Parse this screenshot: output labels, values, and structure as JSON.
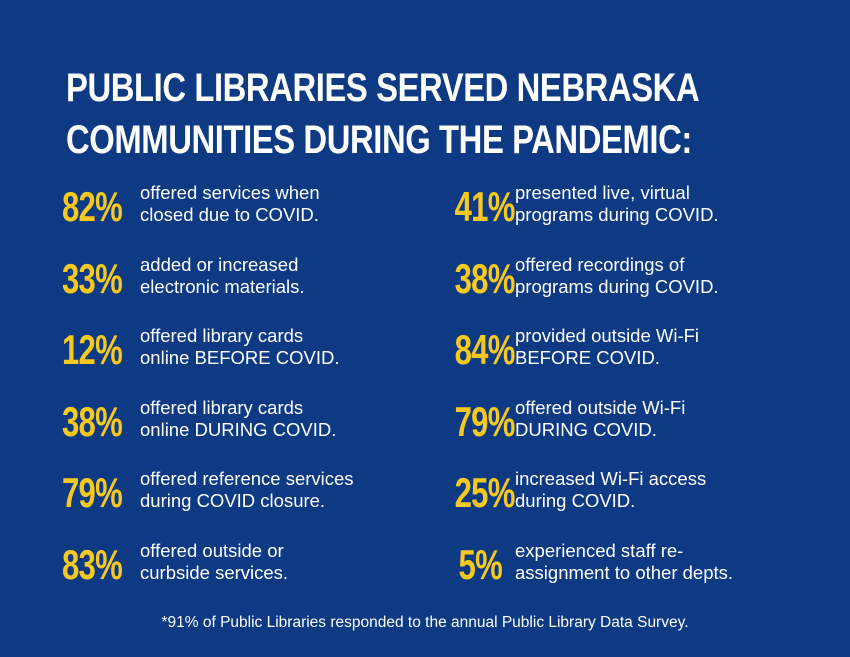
{
  "title": {
    "line1": "PUBLIC LIBRARIES SERVED NEBRASKA",
    "line2": "COMMUNITIES DURING THE PANDEMIC:"
  },
  "left_stats": [
    {
      "percent": "82%",
      "line1": "offered services when",
      "line2": "closed due to COVID."
    },
    {
      "percent": "33%",
      "line1": "added or increased",
      "line2": "electronic materials."
    },
    {
      "percent": "12%",
      "line1": "offered library cards",
      "line2": "online BEFORE COVID."
    },
    {
      "percent": "38%",
      "line1": "offered library cards",
      "line2": "online DURING COVID."
    },
    {
      "percent": "79%",
      "line1": "offered reference services",
      "line2": "during COVID closure."
    },
    {
      "percent": "83%",
      "line1": "offered outside or",
      "line2": "curbside services."
    }
  ],
  "right_stats": [
    {
      "percent": "41%",
      "line1": "presented live, virtual",
      "line2": "programs during COVID."
    },
    {
      "percent": "38%",
      "line1": "offered recordings of",
      "line2": "programs during COVID."
    },
    {
      "percent": "84%",
      "line1": "provided outside Wi-Fi",
      "line2": "BEFORE COVID."
    },
    {
      "percent": "79%",
      "line1": "offered outside Wi-Fi",
      "line2": "DURING COVID."
    },
    {
      "percent": "25%",
      "line1": "increased Wi-Fi access",
      "line2": "during COVID."
    },
    {
      "percent": "5%",
      "line1": "experienced staff re-",
      "line2": "assignment to other depts."
    }
  ],
  "footnote": "*91% of Public Libraries responded to the annual Public Library Data Survey.",
  "colors": {
    "background": "#0e3a84",
    "accent": "#f7c91f",
    "text": "#ffffff"
  }
}
